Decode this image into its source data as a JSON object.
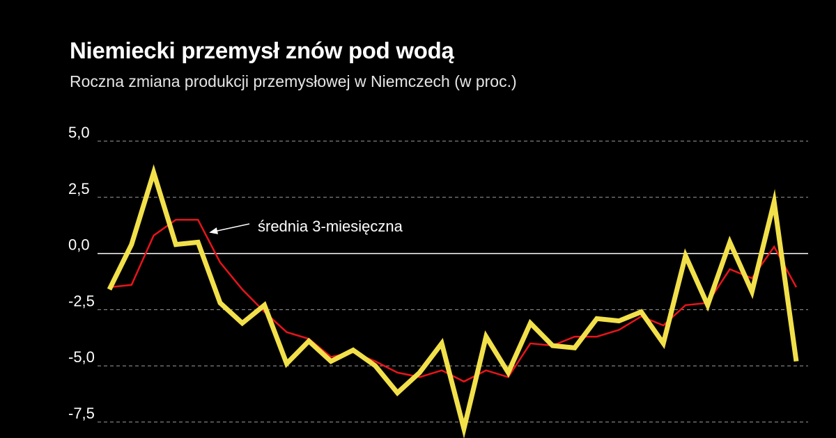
{
  "chart_data": {
    "type": "line",
    "title": "Niemiecki przemysł znów pod wodą",
    "subtitle": "Roczna zmiana produkcji przemysłowej w Niemczech (w proc.)",
    "xlabel": "",
    "ylabel": "",
    "ylim": [
      -7.5,
      5.0
    ],
    "yticks": [
      5.0,
      2.5,
      0.0,
      -2.5,
      -5.0,
      -7.5
    ],
    "ytick_labels": [
      "5,0",
      "2,5",
      "0,0",
      "-2,5",
      "-5,0",
      "-7,5"
    ],
    "grid": true,
    "legend": "none",
    "annotation": {
      "text": "średnia 3-miesięczna",
      "target_series": 1,
      "target_index": 4
    },
    "x": [
      1,
      2,
      3,
      4,
      5,
      6,
      7,
      8,
      9,
      10,
      11,
      12,
      13,
      14,
      15,
      16,
      17,
      18,
      19,
      20,
      21,
      22,
      23,
      24,
      25,
      26,
      27,
      28,
      29,
      30,
      31,
      32
    ],
    "series": [
      {
        "color": "#f2e04b",
        "values": [
          -1.6,
          0.4,
          3.6,
          0.4,
          0.5,
          -2.2,
          -3.1,
          -2.3,
          -4.9,
          -3.9,
          -4.8,
          -4.3,
          -5.0,
          -6.2,
          -5.3,
          -4.0,
          -7.8,
          -3.7,
          -5.3,
          -3.1,
          -4.1,
          -4.2,
          -2.9,
          -3.0,
          -2.6,
          -4.0,
          -0.1,
          -2.3,
          0.5,
          -1.7,
          2.3,
          -4.8
        ]
      },
      {
        "color": "#e8141a",
        "values": [
          -1.5,
          -1.4,
          0.8,
          1.5,
          1.5,
          -0.4,
          -1.6,
          -2.6,
          -3.5,
          -3.8,
          -4.6,
          -4.4,
          -4.8,
          -5.3,
          -5.5,
          -5.2,
          -5.7,
          -5.2,
          -5.5,
          -4.0,
          -4.1,
          -3.7,
          -3.7,
          -3.4,
          -2.8,
          -3.2,
          -2.3,
          -2.2,
          -0.7,
          -1.1,
          0.3,
          -1.5
        ]
      }
    ]
  }
}
